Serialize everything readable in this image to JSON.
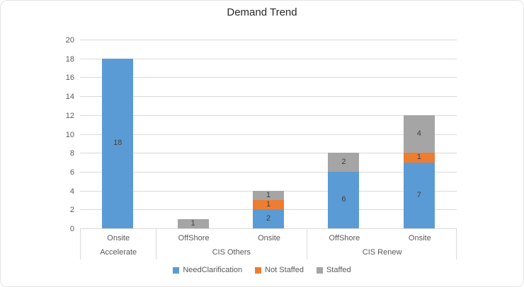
{
  "chart_data": {
    "type": "bar",
    "stacked": true,
    "title": "Demand Trend",
    "group_labels": [
      "Accelerate",
      "CIS Others",
      "CIS Renew"
    ],
    "categories": [
      {
        "group": "Accelerate",
        "label": "Onsite"
      },
      {
        "group": "CIS Others",
        "label": "OffShore"
      },
      {
        "group": "CIS Others",
        "label": "Onsite"
      },
      {
        "group": "CIS Renew",
        "label": "OffShore"
      },
      {
        "group": "CIS Renew",
        "label": "Onsite"
      }
    ],
    "series": [
      {
        "name": "NeedClarification",
        "color": "#5b9bd5",
        "values": [
          18,
          0,
          2,
          6,
          7
        ]
      },
      {
        "name": "Not Staffed",
        "color": "#ed7d31",
        "values": [
          0,
          0,
          1,
          0,
          1
        ]
      },
      {
        "name": "Staffed",
        "color": "#a5a5a5",
        "values": [
          0,
          1,
          1,
          2,
          4
        ]
      }
    ],
    "totals": [
      18,
      1,
      4,
      8,
      12
    ],
    "ylabel": "",
    "xlabel": "",
    "ylim": [
      0,
      20
    ],
    "ytick_step": 2,
    "ytick_labels": [
      "0",
      "2",
      "4",
      "6",
      "8",
      "10",
      "12",
      "14",
      "16",
      "18",
      "20"
    ],
    "grid": true,
    "data_labels": true,
    "legend_position": "bottom",
    "colors": {
      "gridline": "#d9d9d9",
      "axis_text": "#595959",
      "data_label_text": "#404040",
      "title_text": "#262626"
    }
  }
}
